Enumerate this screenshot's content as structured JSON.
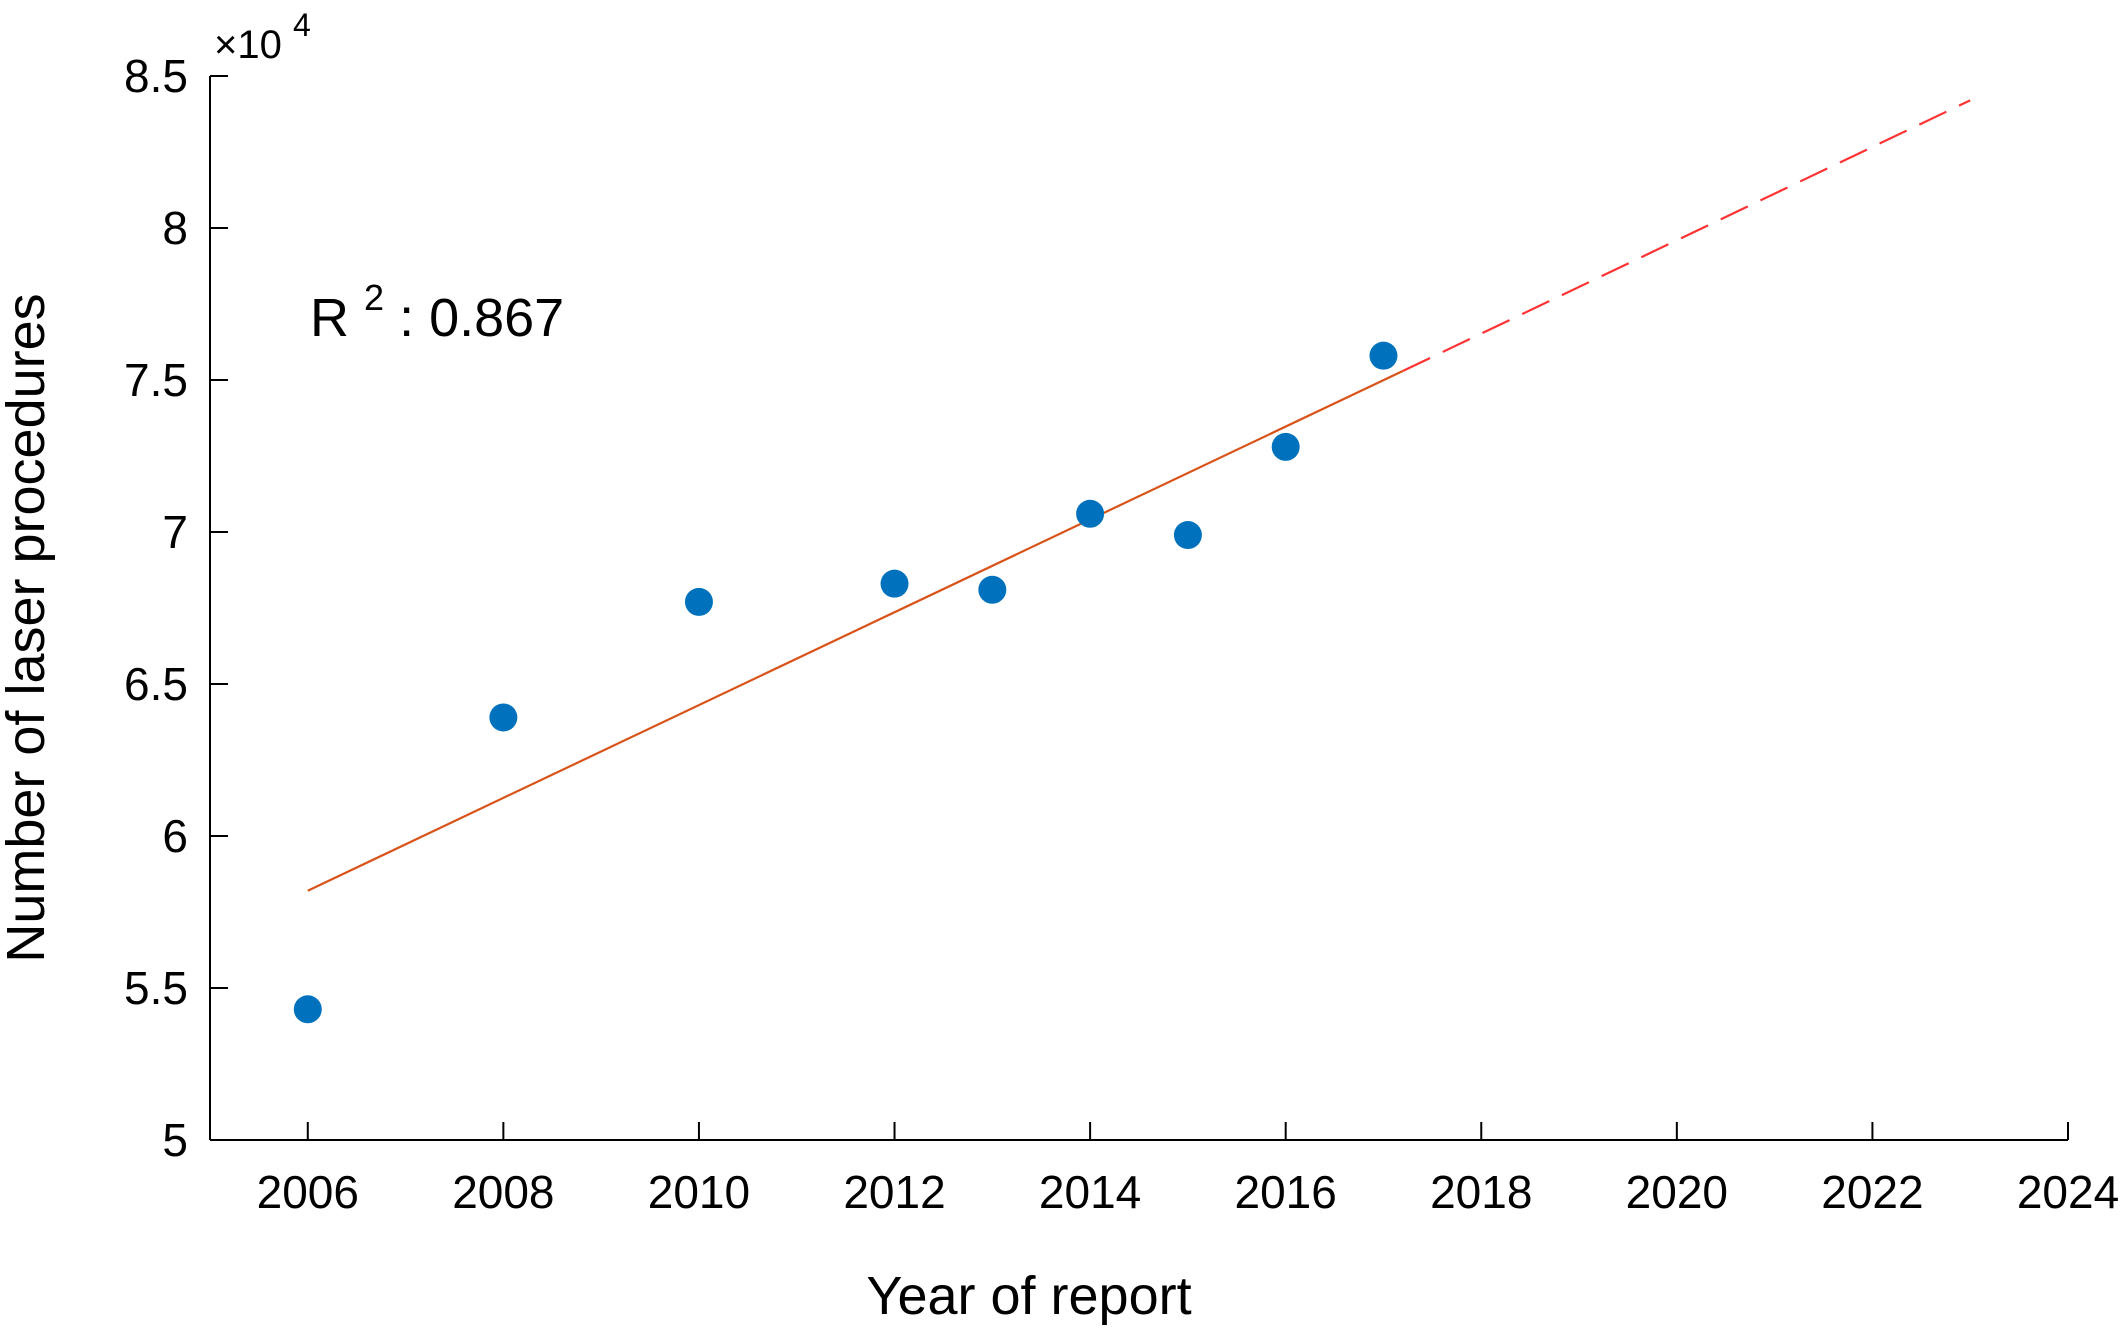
{
  "chart_data": {
    "type": "scatter",
    "xlabel": "Year of report",
    "ylabel": "Number of laser procedures",
    "xlim": [
      2005,
      2024
    ],
    "ylim": [
      5,
      8.5
    ],
    "y_exponent_label": "×10",
    "y_exponent_power": "4",
    "xticks": [
      "2006",
      "2008",
      "2010",
      "2012",
      "2014",
      "2016",
      "2018",
      "2020",
      "2022",
      "2024"
    ],
    "yticks": [
      "5",
      "5.5",
      "6",
      "6.5",
      "7",
      "7.5",
      "8",
      "8.5"
    ],
    "grid": false,
    "annotation": {
      "prefix": "R",
      "power": "2",
      "text": ": 0.867"
    },
    "series": [
      {
        "kind": "points",
        "color": "#0072BD",
        "points": [
          {
            "x": 2006,
            "y": 5.43
          },
          {
            "x": 2008,
            "y": 6.39
          },
          {
            "x": 2010,
            "y": 6.77
          },
          {
            "x": 2012,
            "y": 6.83
          },
          {
            "x": 2013,
            "y": 6.81
          },
          {
            "x": 2014,
            "y": 7.06
          },
          {
            "x": 2015,
            "y": 6.99
          },
          {
            "x": 2016,
            "y": 7.28
          },
          {
            "x": 2017,
            "y": 7.58
          }
        ]
      },
      {
        "kind": "fit",
        "color": "#D95319",
        "points": [
          {
            "x": 2006,
            "y": 5.82
          },
          {
            "x": 2017.2,
            "y": 7.53
          }
        ]
      },
      {
        "kind": "projection",
        "color": "#FF3333",
        "points": [
          {
            "x": 2017.2,
            "y": 7.53
          },
          {
            "x": 2023,
            "y": 8.42
          }
        ]
      }
    ]
  }
}
